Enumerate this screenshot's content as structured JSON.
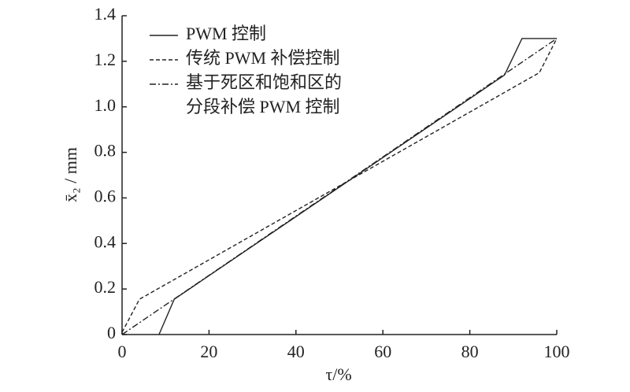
{
  "chart_data": {
    "type": "line",
    "x_label": "τ/%",
    "y_label": "x̄₂ / mm",
    "xlim": [
      0,
      100
    ],
    "xticks": [
      0,
      20,
      40,
      60,
      80,
      100
    ],
    "ylim": [
      0,
      1.4
    ],
    "yticks": [
      0,
      0.2,
      0.4,
      0.6,
      {
        "value": 1,
        "label": "1.0"
      },
      0.8,
      1.2,
      1.4
    ],
    "legend": "upper left",
    "series": [
      {
        "name": "PWM 控制",
        "color": "#222",
        "dash": "solid",
        "x": [
          8.5,
          12,
          88,
          92,
          100
        ],
        "values": [
          0,
          0.155,
          1.14,
          1.3,
          1.3
        ]
      },
      {
        "name": "传统 PWM 补偿控制",
        "color": "#222",
        "dash": "dashed",
        "x": [
          0,
          4,
          96,
          100
        ],
        "values": [
          0.01,
          0.155,
          1.15,
          1.3
        ]
      },
      {
        "name": "基于死区和饱和区的\n分段补偿 PWM 控制",
        "color": "#222",
        "dash": "dashdot",
        "x": [
          0,
          100
        ],
        "values": [
          0,
          1.3
        ]
      }
    ]
  }
}
